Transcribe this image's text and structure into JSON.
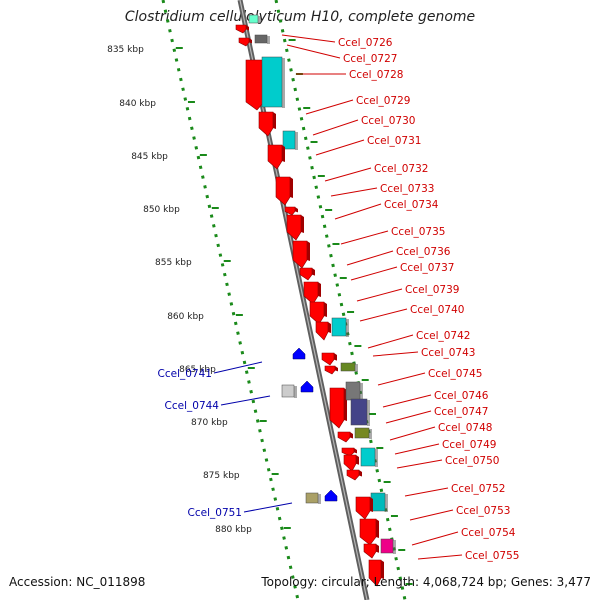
{
  "title": "Clostridium cellulolyticum H10, complete genome",
  "accession": "Accession: NC_011898",
  "summary": "Topology: circular; Length: 4,068,724 bp; Genes: 3,477",
  "colors": {
    "forward_gene": "#ff0000",
    "reverse_gene": "#0000ff",
    "forward_label": "#d00000",
    "reverse_label": "#0000aa",
    "backbone": "#808080",
    "dotted_track": "#1a8a1a"
  },
  "ruler": [
    "835 kbp",
    "840 kbp",
    "845 kbp",
    "850 kbp",
    "855 kbp",
    "860 kbp",
    "865 kbp",
    "870 kbp",
    "875 kbp",
    "880 kbp"
  ],
  "genes_forward": [
    {
      "label": "Ccel_0726"
    },
    {
      "label": "Ccel_0727"
    },
    {
      "label": "Ccel_0728"
    },
    {
      "label": "Ccel_0729"
    },
    {
      "label": "Ccel_0730"
    },
    {
      "label": "Ccel_0731"
    },
    {
      "label": "Ccel_0732"
    },
    {
      "label": "Ccel_0733"
    },
    {
      "label": "Ccel_0734"
    },
    {
      "label": "Ccel_0735"
    },
    {
      "label": "Ccel_0736"
    },
    {
      "label": "Ccel_0737"
    },
    {
      "label": "Ccel_0739"
    },
    {
      "label": "Ccel_0740"
    },
    {
      "label": "Ccel_0742"
    },
    {
      "label": "Ccel_0743"
    },
    {
      "label": "Ccel_0745"
    },
    {
      "label": "Ccel_0746"
    },
    {
      "label": "Ccel_0747"
    },
    {
      "label": "Ccel_0748"
    },
    {
      "label": "Ccel_0749"
    },
    {
      "label": "Ccel_0750"
    },
    {
      "label": "Ccel_0752"
    },
    {
      "label": "Ccel_0753"
    },
    {
      "label": "Ccel_0754"
    },
    {
      "label": "Ccel_0755"
    }
  ],
  "genes_reverse": [
    {
      "label": "Ccel_0741"
    },
    {
      "label": "Ccel_0744"
    },
    {
      "label": "Ccel_0751"
    }
  ]
}
